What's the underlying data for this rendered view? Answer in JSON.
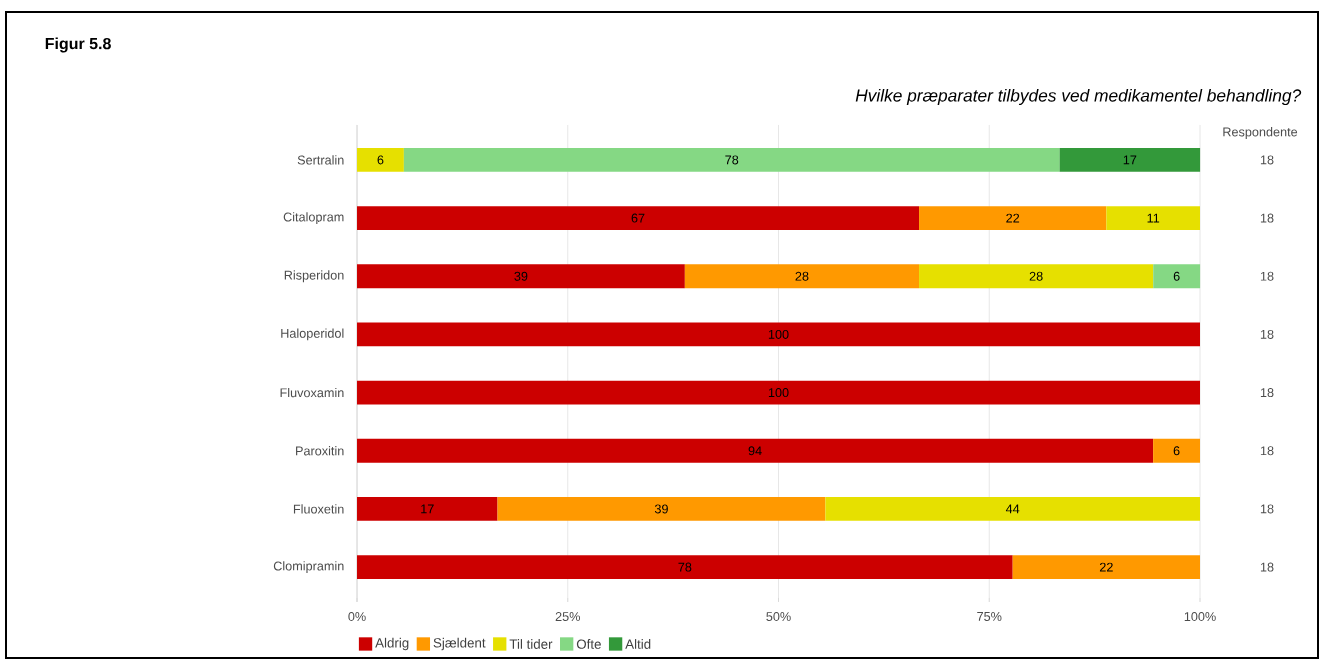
{
  "chart_data": {
    "type": "bar",
    "orientation": "horizontal",
    "stacked": true,
    "title": "Figur 5.8",
    "subtitle": "Hvilke præparater tilbydes ved medikamentel behandling?",
    "categories": [
      "Sertralin",
      "Citalopram",
      "Risperidon",
      "Haloperidol",
      "Fluvoxamin",
      "Paroxitin",
      "Fluoxetin",
      "Clomipramin"
    ],
    "series": [
      {
        "name": "Aldrig",
        "color": "#cc0000",
        "values": [
          null,
          66.67,
          38.89,
          100,
          100,
          94.44,
          16.67,
          77.78
        ],
        "value_labels": [
          null,
          "67",
          "39",
          "100",
          "100",
          "94",
          "17",
          "78"
        ]
      },
      {
        "name": "Sjældent",
        "color": "#ff9900",
        "values": [
          null,
          22.22,
          27.78,
          null,
          null,
          5.56,
          38.89,
          22.22
        ],
        "value_labels": [
          null,
          "22",
          "28",
          null,
          null,
          "6",
          "39",
          "22"
        ]
      },
      {
        "name": "Til tider",
        "color": "#e6e000",
        "values": [
          5.56,
          11.11,
          27.78,
          null,
          null,
          null,
          44.44,
          null
        ],
        "value_labels": [
          "6",
          "11",
          "28",
          null,
          null,
          null,
          "44",
          null
        ]
      },
      {
        "name": "Ofte",
        "color": "#85d884",
        "values": [
          77.78,
          null,
          5.56,
          null,
          null,
          null,
          null,
          null
        ],
        "value_labels": [
          "78",
          null,
          "6",
          null,
          null,
          null,
          null,
          null
        ]
      },
      {
        "name": "Altid",
        "color": "#33993a",
        "values": [
          16.67,
          null,
          null,
          null,
          null,
          null,
          null,
          null
        ],
        "value_labels": [
          "17",
          null,
          null,
          null,
          null,
          null,
          null,
          null
        ]
      }
    ],
    "xlim": [
      0,
      100
    ],
    "xticks": [
      {
        "value": 0,
        "label": "0%"
      },
      {
        "value": 25,
        "label": "25%"
      },
      {
        "value": 50,
        "label": "50%"
      },
      {
        "value": 75,
        "label": "75%"
      },
      {
        "value": 100,
        "label": "100%"
      }
    ],
    "grid": "x",
    "legend": "bottom",
    "annotations": [
      "Respondente",
      "18",
      "18",
      "18",
      "18",
      "18",
      "18",
      "18",
      "18"
    ]
  }
}
